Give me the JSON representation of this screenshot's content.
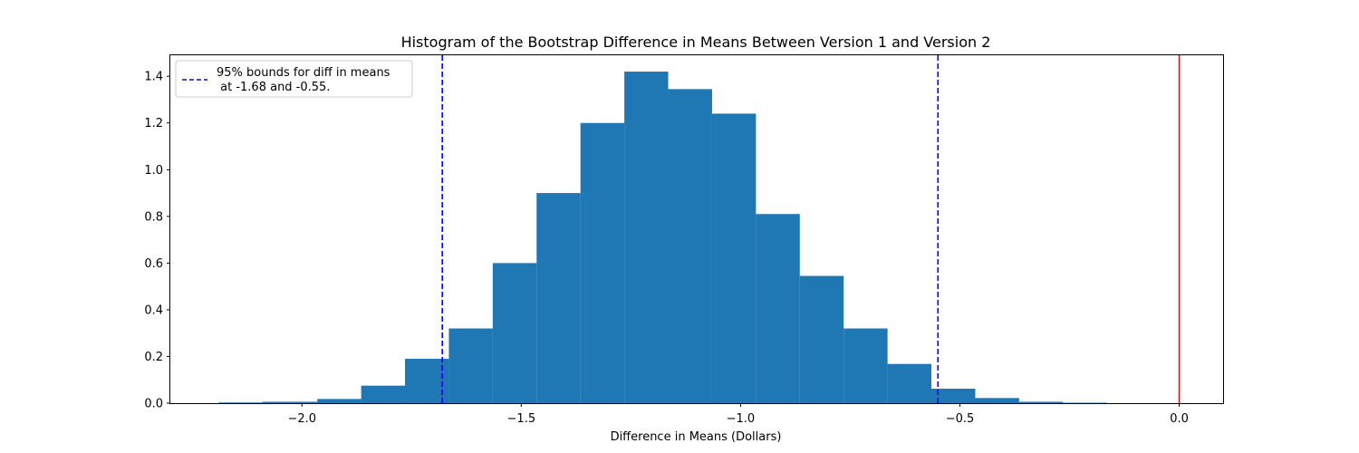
{
  "chart_data": {
    "type": "bar",
    "title": "Histogram of the Bootstrap Difference in Means Between Version 1 and Version 2",
    "xlabel": "Difference in Means (Dollars)",
    "ylabel": "",
    "xlim": [
      -2.3,
      0.1
    ],
    "ylim": [
      0,
      1.49
    ],
    "grid": false,
    "legend_placement": "top-left",
    "bins": [
      {
        "x0": -2.19,
        "x1": -2.09,
        "value": 0.003
      },
      {
        "x0": -2.09,
        "x1": -1.965,
        "value": 0.006
      },
      {
        "x0": -1.965,
        "x1": -1.865,
        "value": 0.018
      },
      {
        "x0": -1.865,
        "x1": -1.765,
        "value": 0.075
      },
      {
        "x0": -1.765,
        "x1": -1.665,
        "value": 0.19
      },
      {
        "x0": -1.665,
        "x1": -1.565,
        "value": 0.32
      },
      {
        "x0": -1.565,
        "x1": -1.465,
        "value": 0.6
      },
      {
        "x0": -1.465,
        "x1": -1.365,
        "value": 0.9
      },
      {
        "x0": -1.365,
        "x1": -1.265,
        "value": 1.2
      },
      {
        "x0": -1.265,
        "x1": -1.165,
        "value": 1.42
      },
      {
        "x0": -1.165,
        "x1": -1.065,
        "value": 1.345
      },
      {
        "x0": -1.065,
        "x1": -0.965,
        "value": 1.24
      },
      {
        "x0": -0.965,
        "x1": -0.865,
        "value": 0.81
      },
      {
        "x0": -0.865,
        "x1": -0.765,
        "value": 0.545
      },
      {
        "x0": -0.765,
        "x1": -0.665,
        "value": 0.32
      },
      {
        "x0": -0.665,
        "x1": -0.565,
        "value": 0.168
      },
      {
        "x0": -0.565,
        "x1": -0.465,
        "value": 0.062
      },
      {
        "x0": -0.465,
        "x1": -0.365,
        "value": 0.022
      },
      {
        "x0": -0.365,
        "x1": -0.265,
        "value": 0.006
      },
      {
        "x0": -0.265,
        "x1": -0.165,
        "value": 0.002
      }
    ],
    "x_ticks": [
      {
        "value": -2.0,
        "label": "−2.0"
      },
      {
        "value": -1.5,
        "label": "−1.5"
      },
      {
        "value": -1.0,
        "label": "−1.0"
      },
      {
        "value": -0.5,
        "label": "−0.5"
      },
      {
        "value": 0.0,
        "label": "0.0"
      }
    ],
    "y_ticks": [
      {
        "value": 0.0,
        "label": "0.0"
      },
      {
        "value": 0.2,
        "label": "0.2"
      },
      {
        "value": 0.4,
        "label": "0.4"
      },
      {
        "value": 0.6,
        "label": "0.6"
      },
      {
        "value": 0.8,
        "label": "0.8"
      },
      {
        "value": 1.0,
        "label": "1.0"
      },
      {
        "value": 1.2,
        "label": "1.2"
      },
      {
        "value": 1.4,
        "label": "1.4"
      }
    ],
    "bounds": {
      "lower": -1.68,
      "upper": -0.55,
      "color": "#0000ff",
      "style": "dashed"
    },
    "reference_line": {
      "x": 0.0,
      "color": "#ff0000"
    },
    "legend": {
      "line1": "95% bounds for diff in means",
      "line2": " at -1.68 and -0.55."
    },
    "colors": {
      "bar": "#1f77b4"
    }
  }
}
